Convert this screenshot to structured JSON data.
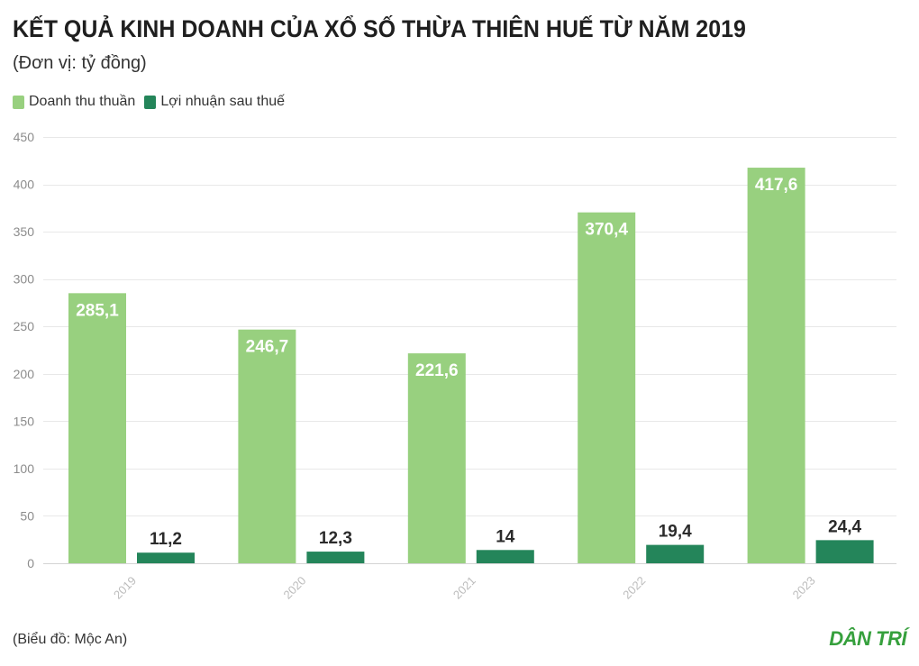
{
  "chart_data": {
    "type": "bar",
    "title": "KẾT QUẢ KINH DOANH CỦA XỔ SỐ THỪA THIÊN HUẾ TỪ NĂM 2019",
    "subtitle": "(Đơn vị: tỷ đồng)",
    "xlabel": "",
    "ylabel": "",
    "categories": [
      "2019",
      "2020",
      "2021",
      "2022",
      "2023"
    ],
    "series": [
      {
        "name": "Doanh thu thuần",
        "color": "#98d07f",
        "values": [
          285.1,
          246.7,
          221.6,
          370.4,
          417.6
        ],
        "labels": [
          "285,1",
          "246,7",
          "221,6",
          "370,4",
          "417,6"
        ]
      },
      {
        "name": "Lợi nhuận sau thuế",
        "color": "#24855a",
        "values": [
          11.2,
          12.3,
          14,
          19.4,
          24.4
        ],
        "labels": [
          "11,2",
          "12,3",
          "14",
          "19,4",
          "24,4"
        ]
      }
    ],
    "ylim": [
      0,
      450
    ],
    "yticks": [
      0,
      50,
      100,
      150,
      200,
      250,
      300,
      350,
      400,
      450
    ],
    "grid": true,
    "legend_position": "top-left"
  },
  "footer": {
    "source": "(Biểu đồ: Mộc An)",
    "logo": "DÂN TRÍ",
    "logo_color": "#36a03d"
  }
}
